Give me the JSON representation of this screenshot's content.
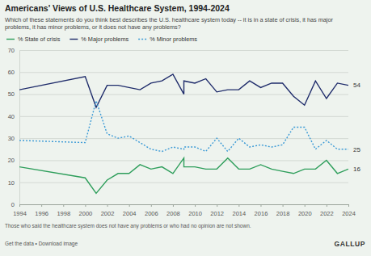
{
  "chart_data": {
    "type": "line",
    "title": "Americans' Views of U.S. Healthcare System, 1994-2024",
    "subtitle": "Which of these statements do you think best describes the U.S. healthcare system today -- it is in a state of crisis, it has major problems, it has minor problems, or it does not have any problems?",
    "x": [
      1994,
      2000,
      2001,
      2002,
      2003,
      2004,
      2005,
      2006,
      2007,
      2008,
      2009,
      2009,
      2010,
      2011,
      2012,
      2013,
      2014,
      2015,
      2016,
      2017,
      2018,
      2019,
      2020,
      2021,
      2022,
      2023,
      2024
    ],
    "series": [
      {
        "name": "% State of crisis",
        "color": "#2e9e5b",
        "line_style": "solid",
        "values": [
          17,
          12,
          5,
          11,
          14,
          14,
          18,
          16,
          17,
          14,
          21,
          17,
          17,
          16,
          16,
          21,
          16,
          16,
          18,
          16,
          15,
          14,
          16,
          16,
          20,
          14,
          16
        ],
        "value_labels": [
          null,
          null,
          null,
          null,
          null,
          null,
          null,
          null,
          null,
          null,
          null,
          null,
          null,
          null,
          null,
          null,
          null,
          null,
          null,
          null,
          null,
          null,
          null,
          null,
          null,
          null,
          "16"
        ]
      },
      {
        "name": "% Major problems",
        "color": "#1f2c6b",
        "line_style": "solid",
        "values": [
          52,
          58,
          44,
          54,
          54,
          53,
          52,
          55,
          56,
          59,
          50,
          56,
          55,
          57,
          51,
          52,
          52,
          56,
          53,
          55,
          55,
          49,
          45,
          56,
          48,
          55,
          54
        ],
        "value_labels": [
          null,
          null,
          null,
          null,
          null,
          null,
          null,
          null,
          null,
          null,
          null,
          null,
          null,
          null,
          null,
          null,
          null,
          null,
          null,
          null,
          null,
          null,
          null,
          null,
          null,
          null,
          "54"
        ]
      },
      {
        "name": "% Minor problems",
        "color": "#3b9ad6",
        "line_style": "dotted",
        "values": [
          29,
          28,
          47,
          32,
          30,
          31,
          28,
          25,
          24,
          26,
          25,
          26,
          26,
          24,
          30,
          24,
          30,
          26,
          27,
          26,
          27,
          35,
          35,
          25,
          29,
          25,
          25
        ],
        "value_labels": [
          null,
          null,
          null,
          null,
          null,
          null,
          null,
          null,
          null,
          null,
          null,
          null,
          null,
          null,
          null,
          null,
          null,
          null,
          null,
          null,
          null,
          null,
          null,
          null,
          null,
          null,
          "25"
        ]
      }
    ],
    "xlim": [
      1994,
      2024
    ],
    "xticks": [
      1994,
      1996,
      1998,
      2000,
      2002,
      2004,
      2006,
      2008,
      2010,
      2012,
      2014,
      2016,
      2018,
      2020,
      2022,
      2024
    ],
    "ylim": [
      0,
      70
    ],
    "yticks": [
      0,
      10,
      20,
      30,
      40,
      50,
      60,
      70
    ],
    "grid": true,
    "legend": "top",
    "note": "Those who said the healthcare system does not have any problems or who had no opinion are not shown.",
    "footer": "Get the data • Download image",
    "source": "GALLUP"
  }
}
